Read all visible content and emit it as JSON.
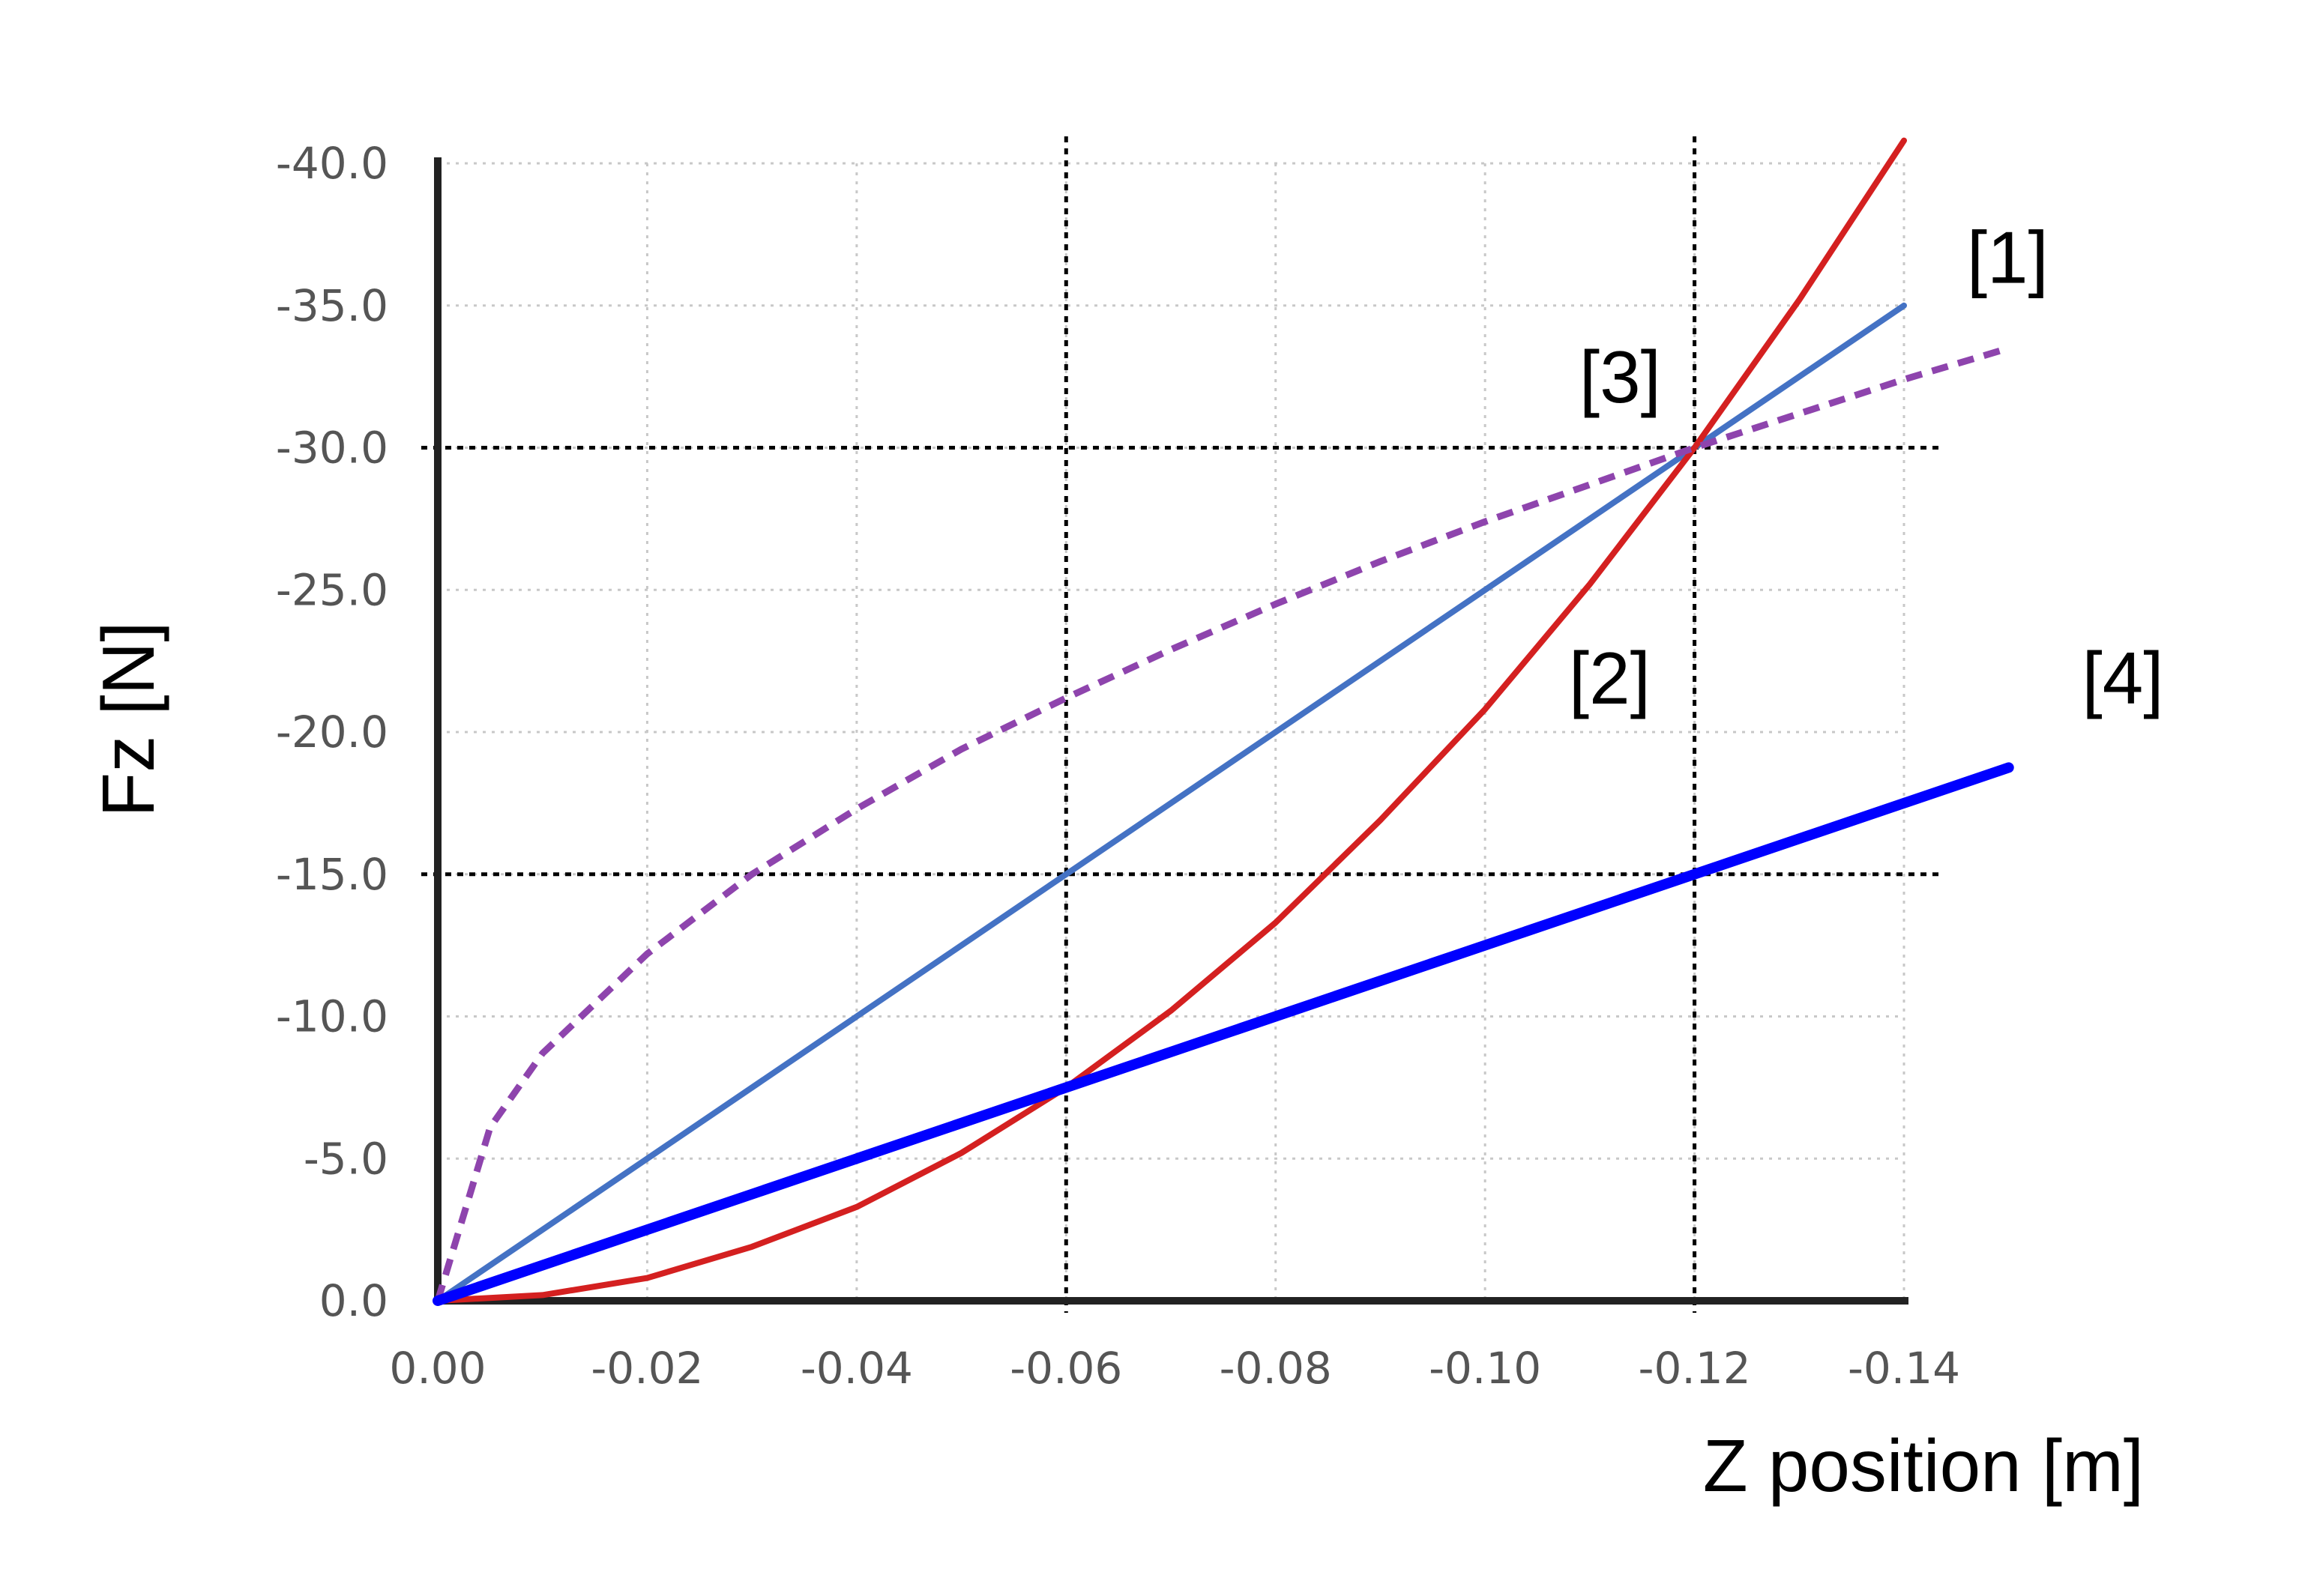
{
  "chart_data": {
    "type": "line",
    "xlabel": "Z position [m]",
    "ylabel": "Fz [N]",
    "xlim": [
      0.0,
      -0.14
    ],
    "ylim": [
      0.0,
      -40.0
    ],
    "xticks": [
      "0.00",
      "-0.02",
      "-0.04",
      "-0.06",
      "-0.08",
      "-0.10",
      "-0.12",
      "-0.14"
    ],
    "yticks": [
      "0.0",
      "-5.0",
      "-10.0",
      "-15.0",
      "-20.0",
      "-25.0",
      "-30.0",
      "-35.0",
      "-40.0"
    ],
    "grid": true,
    "series": [
      {
        "name": "[1]",
        "color": "#4472C4",
        "style": "solid",
        "x": [
          0.0,
          -0.02,
          -0.04,
          -0.06,
          -0.08,
          -0.1,
          -0.12,
          -0.14
        ],
        "y": [
          0.0,
          -5.0,
          -10.0,
          -15.0,
          -20.0,
          -25.0,
          -30.0,
          -35.0
        ]
      },
      {
        "name": "[2]",
        "color": "#D42020",
        "style": "solid",
        "x": [
          0.0,
          -0.01,
          -0.02,
          -0.03,
          -0.04,
          -0.05,
          -0.06,
          -0.07,
          -0.08,
          -0.09,
          -0.1,
          -0.11,
          -0.12,
          -0.13,
          -0.14
        ],
        "y": [
          0.0,
          -0.2,
          -0.8,
          -1.9,
          -3.3,
          -5.2,
          -7.5,
          -10.2,
          -13.3,
          -16.9,
          -20.8,
          -25.2,
          -30.0,
          -35.2,
          -40.8
        ]
      },
      {
        "name": "[3]",
        "color": "#8E44AD",
        "style": "dashed",
        "x": [
          0.0,
          -0.005,
          -0.01,
          -0.02,
          -0.03,
          -0.04,
          -0.05,
          -0.06,
          -0.07,
          -0.08,
          -0.09,
          -0.1,
          -0.11,
          -0.12,
          -0.13,
          -0.14,
          -0.15
        ],
        "y": [
          0.0,
          -6.1,
          -8.7,
          -12.2,
          -15.0,
          -17.3,
          -19.4,
          -21.2,
          -22.9,
          -24.5,
          -26.0,
          -27.4,
          -28.7,
          -30.0,
          -31.2,
          -32.4,
          -33.5
        ]
      },
      {
        "name": "[4]",
        "color": "#0000FF",
        "style": "solid",
        "x": [
          0.0,
          -0.15
        ],
        "y": [
          0.0,
          -18.75
        ]
      }
    ],
    "reference_lines": {
      "vertical_x": [
        -0.06,
        -0.12
      ],
      "horizontal_y": [
        -15.0,
        -30.0
      ]
    },
    "annotations": [
      {
        "text": "[1]",
        "x": -0.146,
        "y": -35.8
      },
      {
        "text": "[2]",
        "x": -0.108,
        "y": -21.0
      },
      {
        "text": "[3]",
        "x": -0.109,
        "y": -31.6
      },
      {
        "text": "[4]",
        "x": -0.157,
        "y": -21.0
      }
    ]
  }
}
